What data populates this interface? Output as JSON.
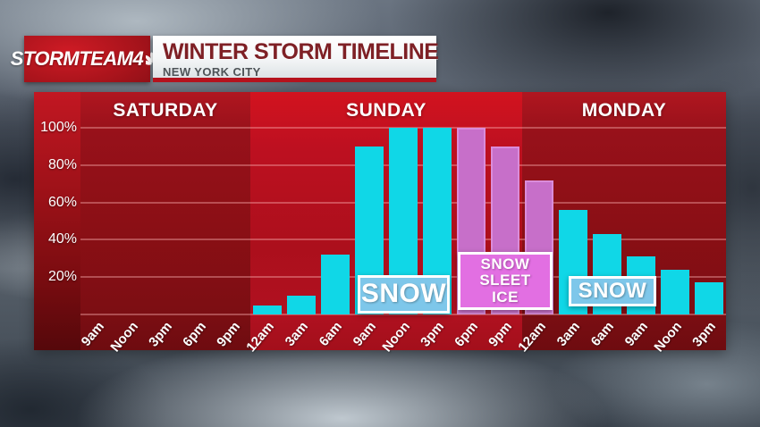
{
  "logo": {
    "storm": "STORM",
    "team": "TEAM",
    "number": "4"
  },
  "header": {
    "title": "WINTER STORM TIMELINE",
    "subtitle": "NEW YORK CITY"
  },
  "chart_data": {
    "type": "bar",
    "title": "WINTER STORM TIMELINE",
    "location": "NEW YORK CITY",
    "unit": "percent probability",
    "ylim": [
      0,
      100
    ],
    "yticks": [
      20,
      40,
      60,
      80,
      100
    ],
    "ytick_labels": [
      "20%",
      "40%",
      "60%",
      "80%",
      "100%"
    ],
    "grid": true,
    "legend_position": "none",
    "days": [
      {
        "label": "SATURDAY",
        "tone": "dark",
        "slots": [
          {
            "time": "9am",
            "value": 0,
            "type": "none"
          },
          {
            "time": "Noon",
            "value": 0,
            "type": "none"
          },
          {
            "time": "3pm",
            "value": 0,
            "type": "none"
          },
          {
            "time": "6pm",
            "value": 0,
            "type": "none"
          },
          {
            "time": "9pm",
            "value": 0,
            "type": "none"
          }
        ]
      },
      {
        "label": "SUNDAY",
        "tone": "bright",
        "slots": [
          {
            "time": "12am",
            "value": 5,
            "type": "snow"
          },
          {
            "time": "3am",
            "value": 10,
            "type": "snow"
          },
          {
            "time": "6am",
            "value": 32,
            "type": "snow"
          },
          {
            "time": "9am",
            "value": 90,
            "type": "snow"
          },
          {
            "time": "Noon",
            "value": 100,
            "type": "snow"
          },
          {
            "time": "3pm",
            "value": 100,
            "type": "snow"
          },
          {
            "time": "6pm",
            "value": 100,
            "type": "mix"
          },
          {
            "time": "9pm",
            "value": 90,
            "type": "mix"
          }
        ]
      },
      {
        "label": "MONDAY",
        "tone": "dark",
        "slots": [
          {
            "time": "12am",
            "value": 72,
            "type": "mix"
          },
          {
            "time": "3am",
            "value": 56,
            "type": "snow"
          },
          {
            "time": "6am",
            "value": 43,
            "type": "snow"
          },
          {
            "time": "9am",
            "value": 31,
            "type": "snow"
          },
          {
            "time": "Noon",
            "value": 24,
            "type": "snow"
          },
          {
            "time": "3pm",
            "value": 17,
            "type": "snow"
          }
        ]
      }
    ],
    "annotations": [
      {
        "id": "snow-sunday",
        "style": "snow",
        "lines": [
          "SNOW"
        ]
      },
      {
        "id": "snow-sleet-ice",
        "style": "mix",
        "lines": [
          "SNOW",
          "SLEET",
          "ICE"
        ]
      },
      {
        "id": "snow-monday",
        "style": "snow",
        "lines": [
          "SNOW"
        ]
      }
    ],
    "colors": {
      "snow_bar": "#10d7e7",
      "mix_bar": "#c76fc9",
      "snow_badge_bg": "#7ec7ea",
      "mix_badge_bg": "#e26fe2",
      "panel_bright": "#b41020",
      "panel_dark": "#8b0f15",
      "accent_red": "#b5121d"
    }
  }
}
